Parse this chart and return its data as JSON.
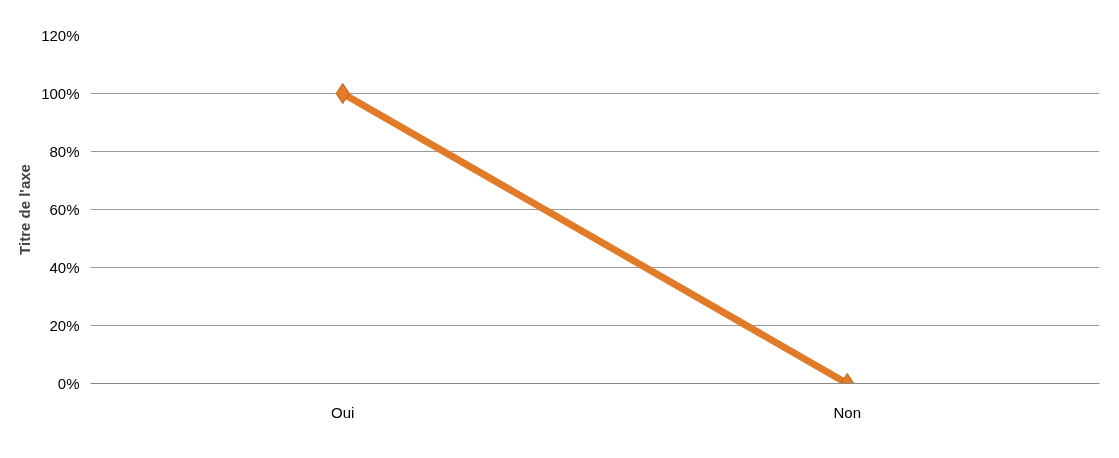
{
  "chart_data": {
    "type": "line",
    "ylabel": "Titre de l'axe",
    "categories": [
      "Oui",
      "Non"
    ],
    "series": [
      {
        "color": "#e07b2a",
        "values": [
          100,
          0
        ]
      }
    ],
    "ylim": [
      0,
      120
    ],
    "yticks": [
      {
        "value": 0,
        "label": "0%"
      },
      {
        "value": 20,
        "label": "20%"
      },
      {
        "value": 40,
        "label": "40%"
      },
      {
        "value": 60,
        "label": "60%"
      },
      {
        "value": 80,
        "label": "80%"
      },
      {
        "value": 100,
        "label": "100%"
      },
      {
        "value": 120,
        "label": "120%"
      }
    ],
    "grid": "y",
    "marker": "diamond",
    "line_style": "solid"
  }
}
